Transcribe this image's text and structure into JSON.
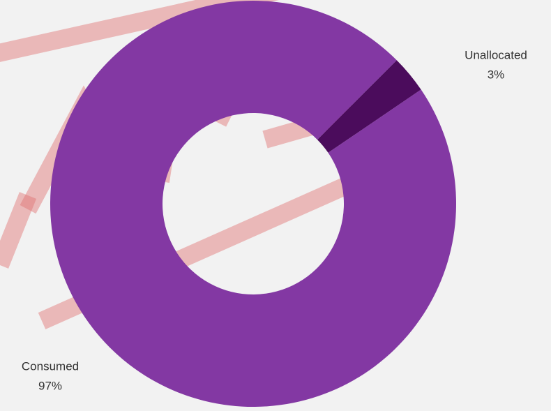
{
  "chart_data": {
    "type": "donut",
    "categories": [
      "Unallocated",
      "Consumed"
    ],
    "values": [
      3,
      97
    ],
    "value_labels": [
      "3%",
      "97%"
    ],
    "colors": [
      "#4b0c5c",
      "#8338a3"
    ]
  }
}
